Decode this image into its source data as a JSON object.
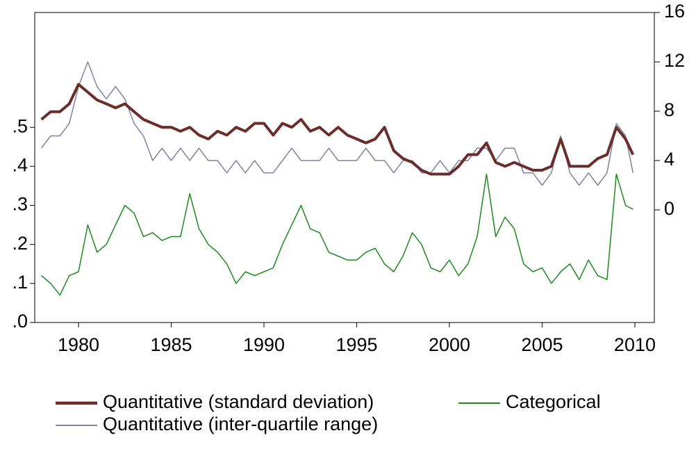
{
  "chart_data": {
    "type": "line",
    "x": [
      1978,
      1978.5,
      1979,
      1979.5,
      1980,
      1980.5,
      1981,
      1981.5,
      1982,
      1982.5,
      1983,
      1983.5,
      1984,
      1984.5,
      1985,
      1985.5,
      1986,
      1986.5,
      1987,
      1987.5,
      1988,
      1988.5,
      1989,
      1989.5,
      1990,
      1990.5,
      1991,
      1991.5,
      1992,
      1992.5,
      1993,
      1993.5,
      1994,
      1994.5,
      1995,
      1995.5,
      1996,
      1996.5,
      1997,
      1997.5,
      1998,
      1998.5,
      1999,
      1999.5,
      2000,
      2000.5,
      2001,
      2001.5,
      2002,
      2002.5,
      2003,
      2003.5,
      2004,
      2004.5,
      2005,
      2005.5,
      2006,
      2006.5,
      2007,
      2007.5,
      2008,
      2008.5,
      2009,
      2009.5,
      2009.9
    ],
    "series": [
      {
        "name": "Quantitative (standard deviation)",
        "color": "#6b2c2c",
        "width": 4,
        "axis": "y",
        "values": [
          0.52,
          0.54,
          0.54,
          0.56,
          0.61,
          0.59,
          0.57,
          0.56,
          0.55,
          0.56,
          0.54,
          0.52,
          0.51,
          0.5,
          0.5,
          0.49,
          0.5,
          0.48,
          0.47,
          0.49,
          0.48,
          0.5,
          0.49,
          0.51,
          0.51,
          0.48,
          0.51,
          0.5,
          0.52,
          0.49,
          0.5,
          0.48,
          0.5,
          0.48,
          0.47,
          0.46,
          0.47,
          0.5,
          0.44,
          0.42,
          0.41,
          0.39,
          0.38,
          0.38,
          0.38,
          0.4,
          0.43,
          0.43,
          0.46,
          0.41,
          0.4,
          0.41,
          0.4,
          0.39,
          0.39,
          0.4,
          0.47,
          0.4,
          0.4,
          0.4,
          0.42,
          0.43,
          0.5,
          0.47,
          0.43
        ]
      },
      {
        "name": "Categorical",
        "color": "#1a8a1a",
        "width": 1.5,
        "axis": "y",
        "values": [
          0.12,
          0.1,
          0.07,
          0.12,
          0.13,
          0.25,
          0.18,
          0.2,
          0.25,
          0.3,
          0.28,
          0.22,
          0.23,
          0.21,
          0.22,
          0.22,
          0.33,
          0.24,
          0.2,
          0.18,
          0.15,
          0.1,
          0.13,
          0.12,
          0.13,
          0.14,
          0.2,
          0.25,
          0.3,
          0.24,
          0.23,
          0.18,
          0.17,
          0.16,
          0.16,
          0.18,
          0.19,
          0.15,
          0.13,
          0.17,
          0.23,
          0.2,
          0.14,
          0.13,
          0.16,
          0.12,
          0.15,
          0.22,
          0.38,
          0.22,
          0.27,
          0.24,
          0.15,
          0.13,
          0.14,
          0.1,
          0.13,
          0.15,
          0.11,
          0.16,
          0.12,
          0.11,
          0.38,
          0.3,
          0.29
        ]
      },
      {
        "name": "Quantitative (inter-quartile range)",
        "color": "#8080a8",
        "width": 1.5,
        "axis": "y2",
        "values": [
          5,
          6,
          6,
          7,
          10,
          12,
          10,
          9,
          10,
          9,
          7,
          6,
          4,
          5,
          4,
          5,
          4,
          5,
          4,
          4,
          3,
          4,
          3,
          4,
          3,
          3,
          4,
          5,
          4,
          4,
          4,
          5,
          4,
          4,
          4,
          5,
          4,
          4,
          3,
          4,
          4,
          3,
          3,
          4,
          3,
          4,
          4,
          5,
          5,
          4,
          5,
          5,
          3,
          3,
          2,
          3,
          6,
          3,
          2,
          3,
          2,
          3,
          7,
          6,
          3
        ]
      }
    ],
    "xlim": [
      1977.64,
      2011.05
    ],
    "xticks": [
      1980,
      1985,
      1990,
      1995,
      2000,
      2005,
      2010
    ],
    "ylim": [
      0,
      0.794
    ],
    "yticks": [
      {
        "value": 0,
        "label": ".0"
      },
      {
        "value": 0.1,
        "label": ".1"
      },
      {
        "value": 0.2,
        "label": ".2"
      },
      {
        "value": 0.3,
        "label": ".3"
      },
      {
        "value": 0.4,
        "label": ".4"
      },
      {
        "value": 0.5,
        "label": ".5"
      }
    ],
    "y2lim": [
      -9.13,
      16
    ],
    "y2ticks": [
      0,
      4,
      8,
      12,
      16
    ]
  }
}
